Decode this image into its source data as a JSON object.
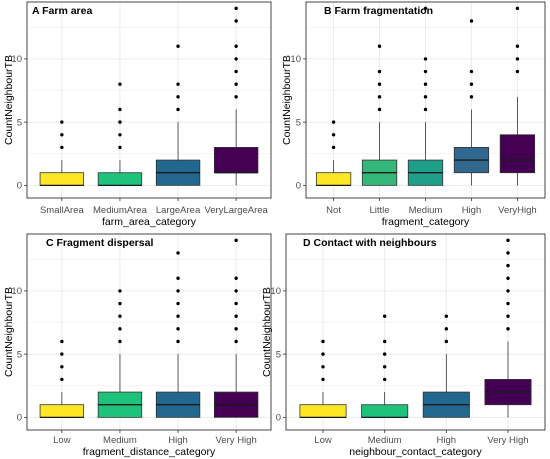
{
  "colors": {
    "background": "#ffffff",
    "grid": "#ebebeb",
    "frame": "#333333",
    "whisker": "#333333",
    "median": "#1a1a1a",
    "tick_text": "#4d4d4d"
  },
  "chart_data": [
    {
      "type": "box",
      "title": "A Farm area",
      "xlabel": "farm_area_category",
      "ylabel": "CountNeighbourTB",
      "ylim": [
        -1,
        14.5
      ],
      "yticks": [
        0,
        5,
        10
      ],
      "grid": true,
      "categories": [
        {
          "name": "SmallArea",
          "q1": 0,
          "median": 0,
          "q3": 1,
          "whisker_low": 0,
          "whisker_high": 2,
          "outliers": [
            3,
            4,
            5
          ],
          "color": "#fde725"
        },
        {
          "name": "MediumArea",
          "q1": 0,
          "median": 0,
          "q3": 1,
          "whisker_low": 0,
          "whisker_high": 2,
          "outliers": [
            3,
            4,
            5,
            6,
            8
          ],
          "color": "#1fc27a"
        },
        {
          "name": "LargeArea",
          "q1": 0,
          "median": 1,
          "q3": 2,
          "whisker_low": 0,
          "whisker_high": 5,
          "outliers": [
            6,
            7,
            8,
            11
          ],
          "color": "#21678e"
        },
        {
          "name": "VeryLargeArea",
          "q1": 1,
          "median": 1,
          "q3": 3,
          "whisker_low": 0,
          "whisker_high": 6,
          "outliers": [
            7,
            8,
            9,
            10,
            11,
            13,
            14
          ],
          "color": "#440154"
        }
      ]
    },
    {
      "type": "box",
      "title": "B Farm fragmentation",
      "xlabel": "fragment_category",
      "ylabel": "CountNeighbourTB",
      "ylim": [
        -1,
        14.5
      ],
      "yticks": [
        0,
        5,
        10
      ],
      "grid": true,
      "categories": [
        {
          "name": "Not",
          "q1": 0,
          "median": 0,
          "q3": 1,
          "whisker_low": 0,
          "whisker_high": 2,
          "outliers": [
            3,
            4,
            5
          ],
          "color": "#fde725"
        },
        {
          "name": "Little",
          "q1": 0,
          "median": 1,
          "q3": 2,
          "whisker_low": 0,
          "whisker_high": 5,
          "outliers": [
            6,
            7,
            8,
            9,
            11
          ],
          "color": "#35b779"
        },
        {
          "name": "Medium",
          "q1": 0,
          "median": 1,
          "q3": 2,
          "whisker_low": 0,
          "whisker_high": 5,
          "outliers": [
            6,
            7,
            8,
            9,
            10,
            14
          ],
          "color": "#1f9e89"
        },
        {
          "name": "High",
          "q1": 1,
          "median": 2,
          "q3": 3,
          "whisker_low": 0,
          "whisker_high": 6,
          "outliers": [
            7,
            8,
            9,
            13
          ],
          "color": "#31688e"
        },
        {
          "name": "VeryHigh",
          "q1": 1,
          "median": 2,
          "q3": 4,
          "whisker_low": 0,
          "whisker_high": 7,
          "outliers": [
            9,
            10,
            11,
            14
          ],
          "color": "#440154"
        }
      ]
    },
    {
      "type": "box",
      "title": "C Fragment dispersal",
      "xlabel": "fragment_distance_category",
      "ylabel": "CountNeighbourTB",
      "ylim": [
        -1,
        14.5
      ],
      "yticks": [
        0,
        5,
        10
      ],
      "grid": true,
      "categories": [
        {
          "name": "Low",
          "q1": 0,
          "median": 0,
          "q3": 1,
          "whisker_low": 0,
          "whisker_high": 2,
          "outliers": [
            3,
            4,
            5,
            6
          ],
          "color": "#fde725"
        },
        {
          "name": "Medium",
          "q1": 0,
          "median": 1,
          "q3": 2,
          "whisker_low": 0,
          "whisker_high": 5,
          "outliers": [
            6,
            7,
            8,
            9,
            10
          ],
          "color": "#1fc27a"
        },
        {
          "name": "High",
          "q1": 0,
          "median": 1,
          "q3": 2,
          "whisker_low": 0,
          "whisker_high": 5,
          "outliers": [
            6,
            7,
            8,
            9,
            10,
            11,
            13
          ],
          "color": "#21678e"
        },
        {
          "name": "Very High",
          "q1": 0,
          "median": 1,
          "q3": 2,
          "whisker_low": 0,
          "whisker_high": 5,
          "outliers": [
            6,
            7,
            8,
            9,
            10,
            11,
            14
          ],
          "color": "#440154"
        }
      ]
    },
    {
      "type": "box",
      "title": "D Contact with neighbours",
      "xlabel": "neighbour_contact_category",
      "ylabel": "CountNeighbourTB",
      "ylim": [
        -1,
        14.5
      ],
      "yticks": [
        0,
        5,
        10
      ],
      "grid": true,
      "categories": [
        {
          "name": "Low",
          "q1": 0,
          "median": 0,
          "q3": 1,
          "whisker_low": 0,
          "whisker_high": 2,
          "outliers": [
            3,
            4,
            5,
            6
          ],
          "color": "#fde725"
        },
        {
          "name": "Medium",
          "q1": 0,
          "median": 0,
          "q3": 1,
          "whisker_low": 0,
          "whisker_high": 2,
          "outliers": [
            3,
            4,
            5,
            6,
            8
          ],
          "color": "#1fc27a"
        },
        {
          "name": "High",
          "q1": 0,
          "median": 1,
          "q3": 2,
          "whisker_low": 0,
          "whisker_high": 5,
          "outliers": [
            6,
            7,
            8
          ],
          "color": "#21678e"
        },
        {
          "name": "Very High",
          "q1": 1,
          "median": 2,
          "q3": 3,
          "whisker_low": 0,
          "whisker_high": 6,
          "outliers": [
            7,
            8,
            9,
            10,
            11,
            12,
            13,
            14
          ],
          "color": "#440154"
        }
      ]
    }
  ]
}
